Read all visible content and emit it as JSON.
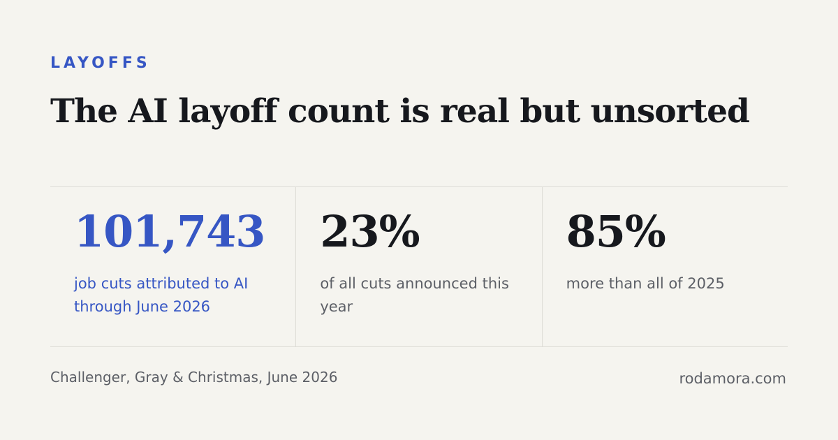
{
  "header": {
    "kicker": "LAYOFFS",
    "title": "The AI layoff count is real but unsorted"
  },
  "stats": [
    {
      "value": "101,743",
      "label": "job cuts attributed to AI through June 2026"
    },
    {
      "value": "23%",
      "label": "of all cuts announced this year"
    },
    {
      "value": "85%",
      "label": "more than all of 2025"
    }
  ],
  "footer": {
    "source": "Challenger, Gray & Christmas, June 2026",
    "site": "rodamora.com"
  }
}
